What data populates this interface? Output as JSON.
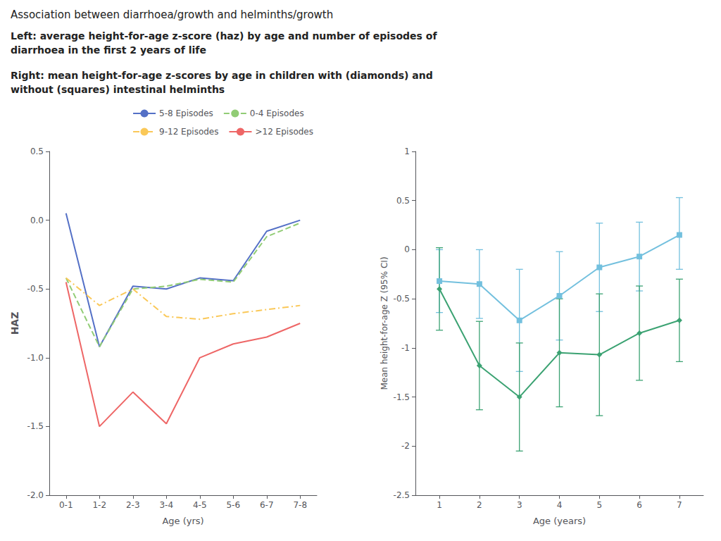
{
  "chart_data": [
    {
      "type": "line",
      "title": "Association between diarrhoea/growth and helminths/growth",
      "subtitle": "Left: average height-for-age z-score (haz) by age and number of episodes of\ndiarrhoea in the first 2 years of life",
      "categories": [
        "0-1",
        "1-2",
        "2-3",
        "3-4",
        "4-5",
        "5-6",
        "6-7",
        "7-8"
      ],
      "series": [
        {
          "name": "5-8 Episodes",
          "line_style": "solid",
          "values": [
            0.05,
            -0.92,
            -0.48,
            -0.5,
            -0.42,
            -0.44,
            -0.08,
            0.0
          ]
        },
        {
          "name": "0-4 Episodes",
          "line_style": "dashed",
          "values": [
            -0.42,
            -0.92,
            -0.5,
            -0.48,
            -0.43,
            -0.45,
            -0.12,
            -0.02
          ]
        },
        {
          "name": "9-12 Episodes",
          "line_style": "dashdot",
          "values": [
            -0.42,
            -0.62,
            -0.5,
            -0.7,
            -0.72,
            -0.68,
            -0.65,
            -0.62
          ]
        },
        {
          "name": ">12 Episodes",
          "line_style": "solid",
          "values": [
            -0.45,
            -1.5,
            -1.25,
            -1.48,
            -1.0,
            -0.9,
            -0.85,
            -0.75
          ]
        }
      ],
      "xlabel": "Age (yrs)",
      "ylabel": "HAZ",
      "ylim": [
        -2.0,
        0.5
      ],
      "yticks": [
        0.5,
        {
          "value": 0.0,
          "label": "0.0"
        },
        -0.5,
        {
          "value": -1.0,
          "label": "-1.0"
        },
        -1.5,
        {
          "value": -2.0,
          "label": "-2.0"
        }
      ],
      "grid": false,
      "legend": "upper right"
    },
    {
      "type": "line",
      "subtitle": "Right: mean height-for-age z-scores by age in children with (diamonds) and\nwithout (squares) intestinal helminths",
      "x": [
        1,
        2,
        3,
        4,
        5,
        6,
        7
      ],
      "xlim": [
        0.4,
        7.6
      ],
      "xticks": [
        1,
        2,
        3,
        4,
        5,
        6,
        7
      ],
      "series": [
        {
          "marker": "square",
          "values": [
            -0.32,
            -0.35,
            -0.72,
            -0.47,
            -0.18,
            -0.07,
            0.15
          ],
          "error_low": [
            0.32,
            0.35,
            0.52,
            0.45,
            0.45,
            0.35,
            0.35
          ],
          "error_high": [
            0.32,
            0.35,
            0.52,
            0.45,
            0.45,
            0.35,
            0.38
          ]
        },
        {
          "marker": "diamond",
          "values": [
            -0.4,
            -1.18,
            -1.5,
            -1.05,
            -1.07,
            -0.85,
            -0.72
          ],
          "error_low": [
            0.42,
            0.45,
            0.55,
            0.55,
            0.62,
            0.48,
            0.42
          ],
          "error_high": [
            0.42,
            0.45,
            0.55,
            0.55,
            0.62,
            0.48,
            0.42
          ]
        }
      ],
      "xlabel": "Age (years)",
      "ylabel": "Mean height-for-age Z (95% CI)",
      "ylim": [
        -2.5,
        1.0
      ],
      "yticks": [
        1,
        0.5,
        0,
        -0.5,
        -1,
        -1.5,
        -2,
        -2.5
      ],
      "grid": false
    }
  ]
}
